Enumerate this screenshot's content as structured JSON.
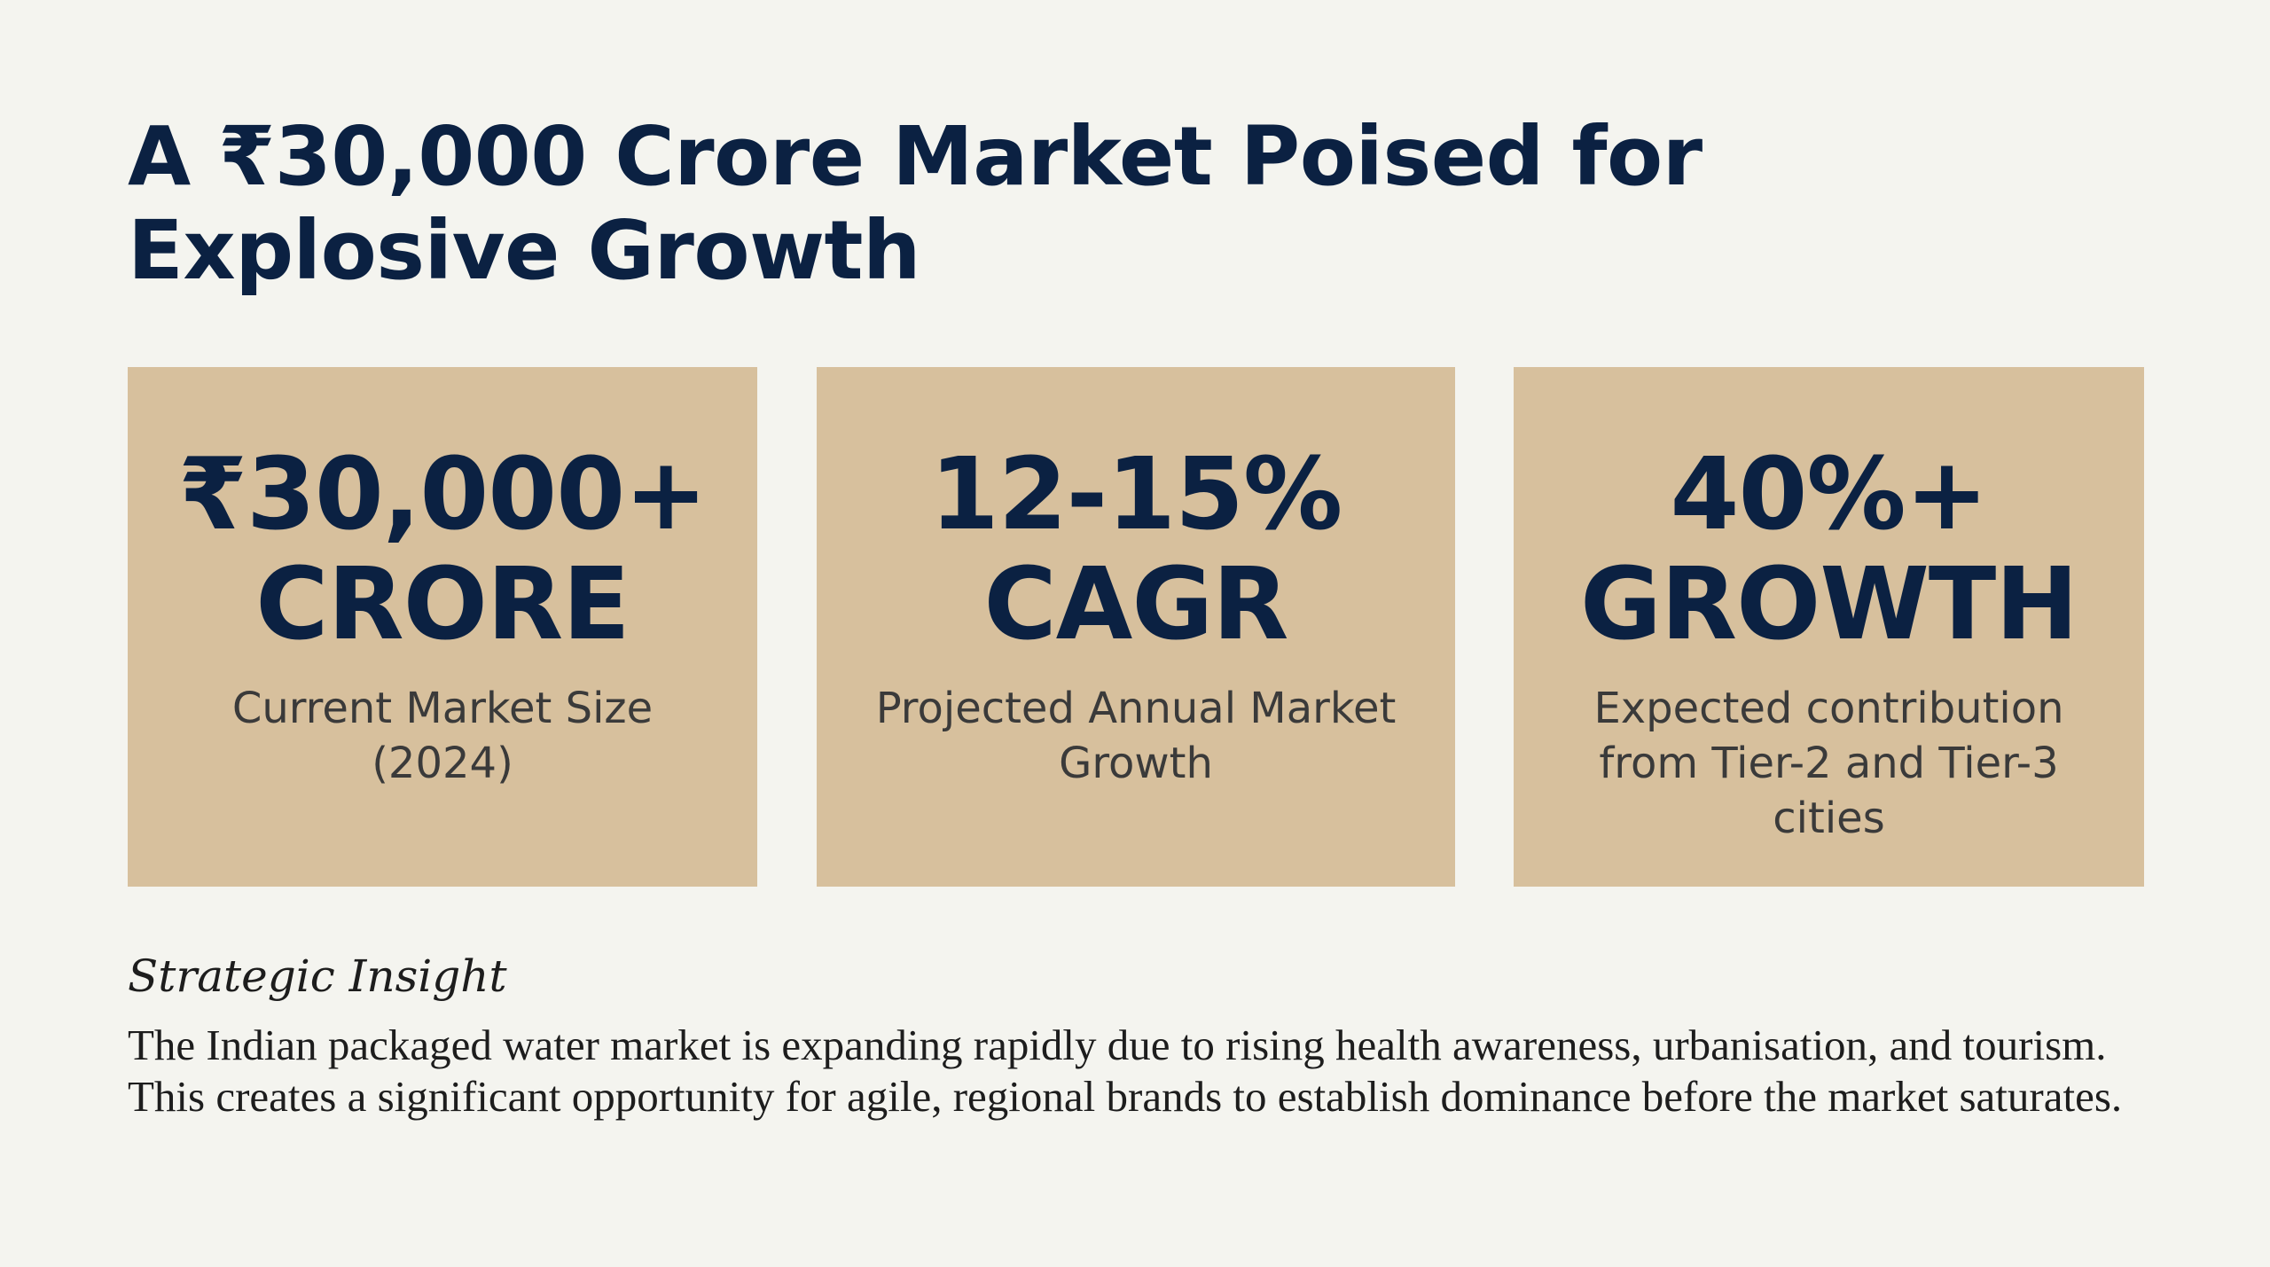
{
  "title": "A ₹30,000 Crore Market Poised for Explosive Growth",
  "cards": [
    {
      "value_line1": "₹30,000+",
      "value_line2": "CRORE",
      "description": "Current Market Size (2024)"
    },
    {
      "value_line1": "12-15%",
      "value_line2": "CAGR",
      "description": "Projected Annual Market Growth"
    },
    {
      "value_line1": "40%+",
      "value_line2": "GROWTH",
      "description": "Expected contribution from Tier-2 and Tier-3 cities"
    }
  ],
  "insight": {
    "label": "Strategic Insight",
    "body": "The Indian packaged water market is expanding rapidly due to rising health awareness, urbanisation, and tourism. This creates a significant opportunity for agile, regional brands to establish dominance before the market saturates."
  },
  "colors": {
    "background": "#f4f4ef",
    "card": "#d7c09d",
    "heading": "#0b2142",
    "body_text": "#1d1d1d"
  }
}
